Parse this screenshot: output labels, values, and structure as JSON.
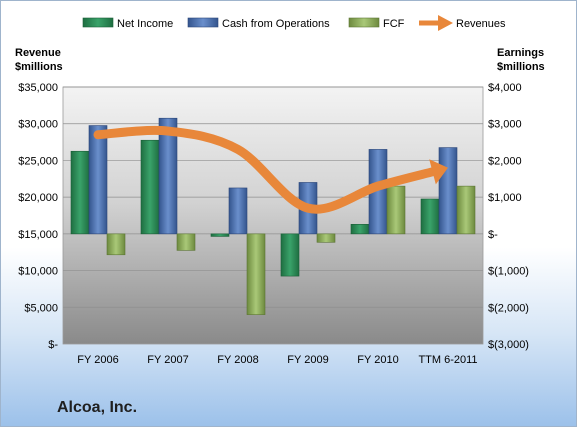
{
  "company": "Alcoa, Inc.",
  "chart_data": {
    "type": "bar",
    "categories": [
      "FY 2006",
      "FY 2007",
      "FY 2008",
      "FY 2009",
      "FY 2010",
      "TTM 6-2011"
    ],
    "left_axis": {
      "title_line1": "Revenue",
      "title_line2": "$millions",
      "ylim": [
        0,
        35000
      ],
      "ticks": [
        0,
        5000,
        10000,
        15000,
        20000,
        25000,
        30000,
        35000
      ],
      "tick_labels": [
        "$-",
        "$5,000",
        "$10,000",
        "$15,000",
        "$20,000",
        "$25,000",
        "$30,000",
        "$35,000"
      ]
    },
    "right_axis": {
      "title_line1": "Earnings",
      "title_line2": "$millions",
      "ylim": [
        -3000,
        4000
      ],
      "ticks": [
        -3000,
        -2000,
        -1000,
        0,
        1000,
        2000,
        3000,
        4000
      ],
      "tick_labels": [
        "$(3,000)",
        "$(2,000)",
        "$(1,000)",
        "$-",
        "$1,000",
        "$2,000",
        "$3,000",
        "$4,000"
      ]
    },
    "series": [
      {
        "name": "Net Income",
        "type": "bar",
        "axis": "right",
        "color": "#2e8b57",
        "values": [
          2250,
          2550,
          -70,
          -1150,
          260,
          950
        ]
      },
      {
        "name": "Cash from Operations",
        "type": "bar",
        "axis": "right",
        "color": "#4a6fb0",
        "values": [
          2950,
          3150,
          1250,
          1400,
          2300,
          2350
        ]
      },
      {
        "name": "FCF",
        "type": "bar",
        "axis": "right",
        "color": "#8fae5a",
        "values": [
          -570,
          -450,
          -2200,
          -230,
          1300,
          1300
        ]
      },
      {
        "name": "Revenues",
        "type": "line",
        "axis": "left",
        "color": "#e8873a",
        "values": [
          28500,
          29000,
          26500,
          18500,
          21500,
          24000
        ]
      }
    ],
    "grid": true,
    "legend_position": "top"
  }
}
